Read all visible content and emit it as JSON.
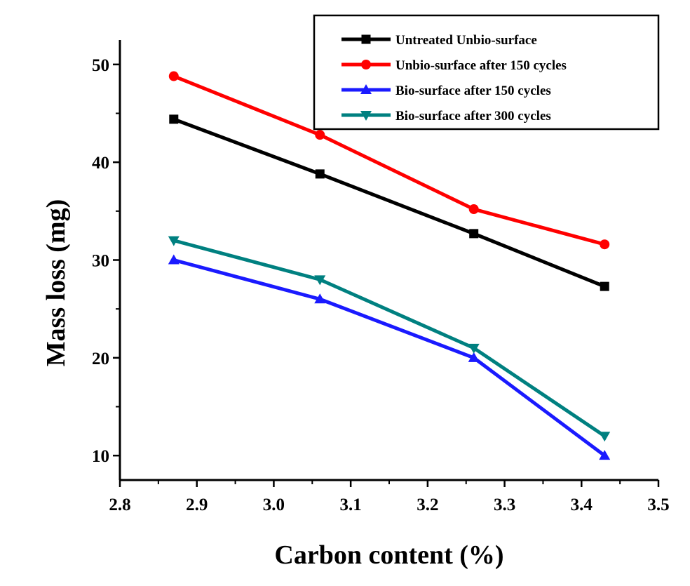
{
  "chart_data": {
    "type": "line",
    "title": "",
    "xlabel": "Carbon content (%)",
    "ylabel": "Mass loss (mg)",
    "xlim": [
      2.8,
      3.5
    ],
    "ylim": [
      7.5,
      52.5
    ],
    "x_ticks": [
      "2.8",
      "2.9",
      "3.0",
      "3.1",
      "3.2",
      "3.3",
      "3.4",
      "3.5"
    ],
    "y_ticks": [
      "10",
      "20",
      "30",
      "40",
      "50"
    ],
    "grid": false,
    "legend_position": "top-right",
    "x": [
      2.87,
      3.06,
      3.26,
      3.43
    ],
    "series": [
      {
        "name": "Untreated Unbio-surface",
        "color": "#000000",
        "marker": "square",
        "values": [
          44.4,
          38.8,
          32.7,
          27.3
        ]
      },
      {
        "name": "Unbio-surface after 150 cycles",
        "color": "#ff0000",
        "marker": "circle",
        "values": [
          48.8,
          42.8,
          35.2,
          31.6
        ]
      },
      {
        "name": "Bio-surface after 150 cycles",
        "color": "#1a1aff",
        "marker": "triangle-up",
        "values": [
          30.0,
          26.0,
          20.0,
          10.0
        ]
      },
      {
        "name": "Bio-surface after 300 cycles",
        "color": "#008080",
        "marker": "triangle-down",
        "values": [
          32.0,
          28.0,
          21.0,
          12.0
        ]
      }
    ]
  }
}
